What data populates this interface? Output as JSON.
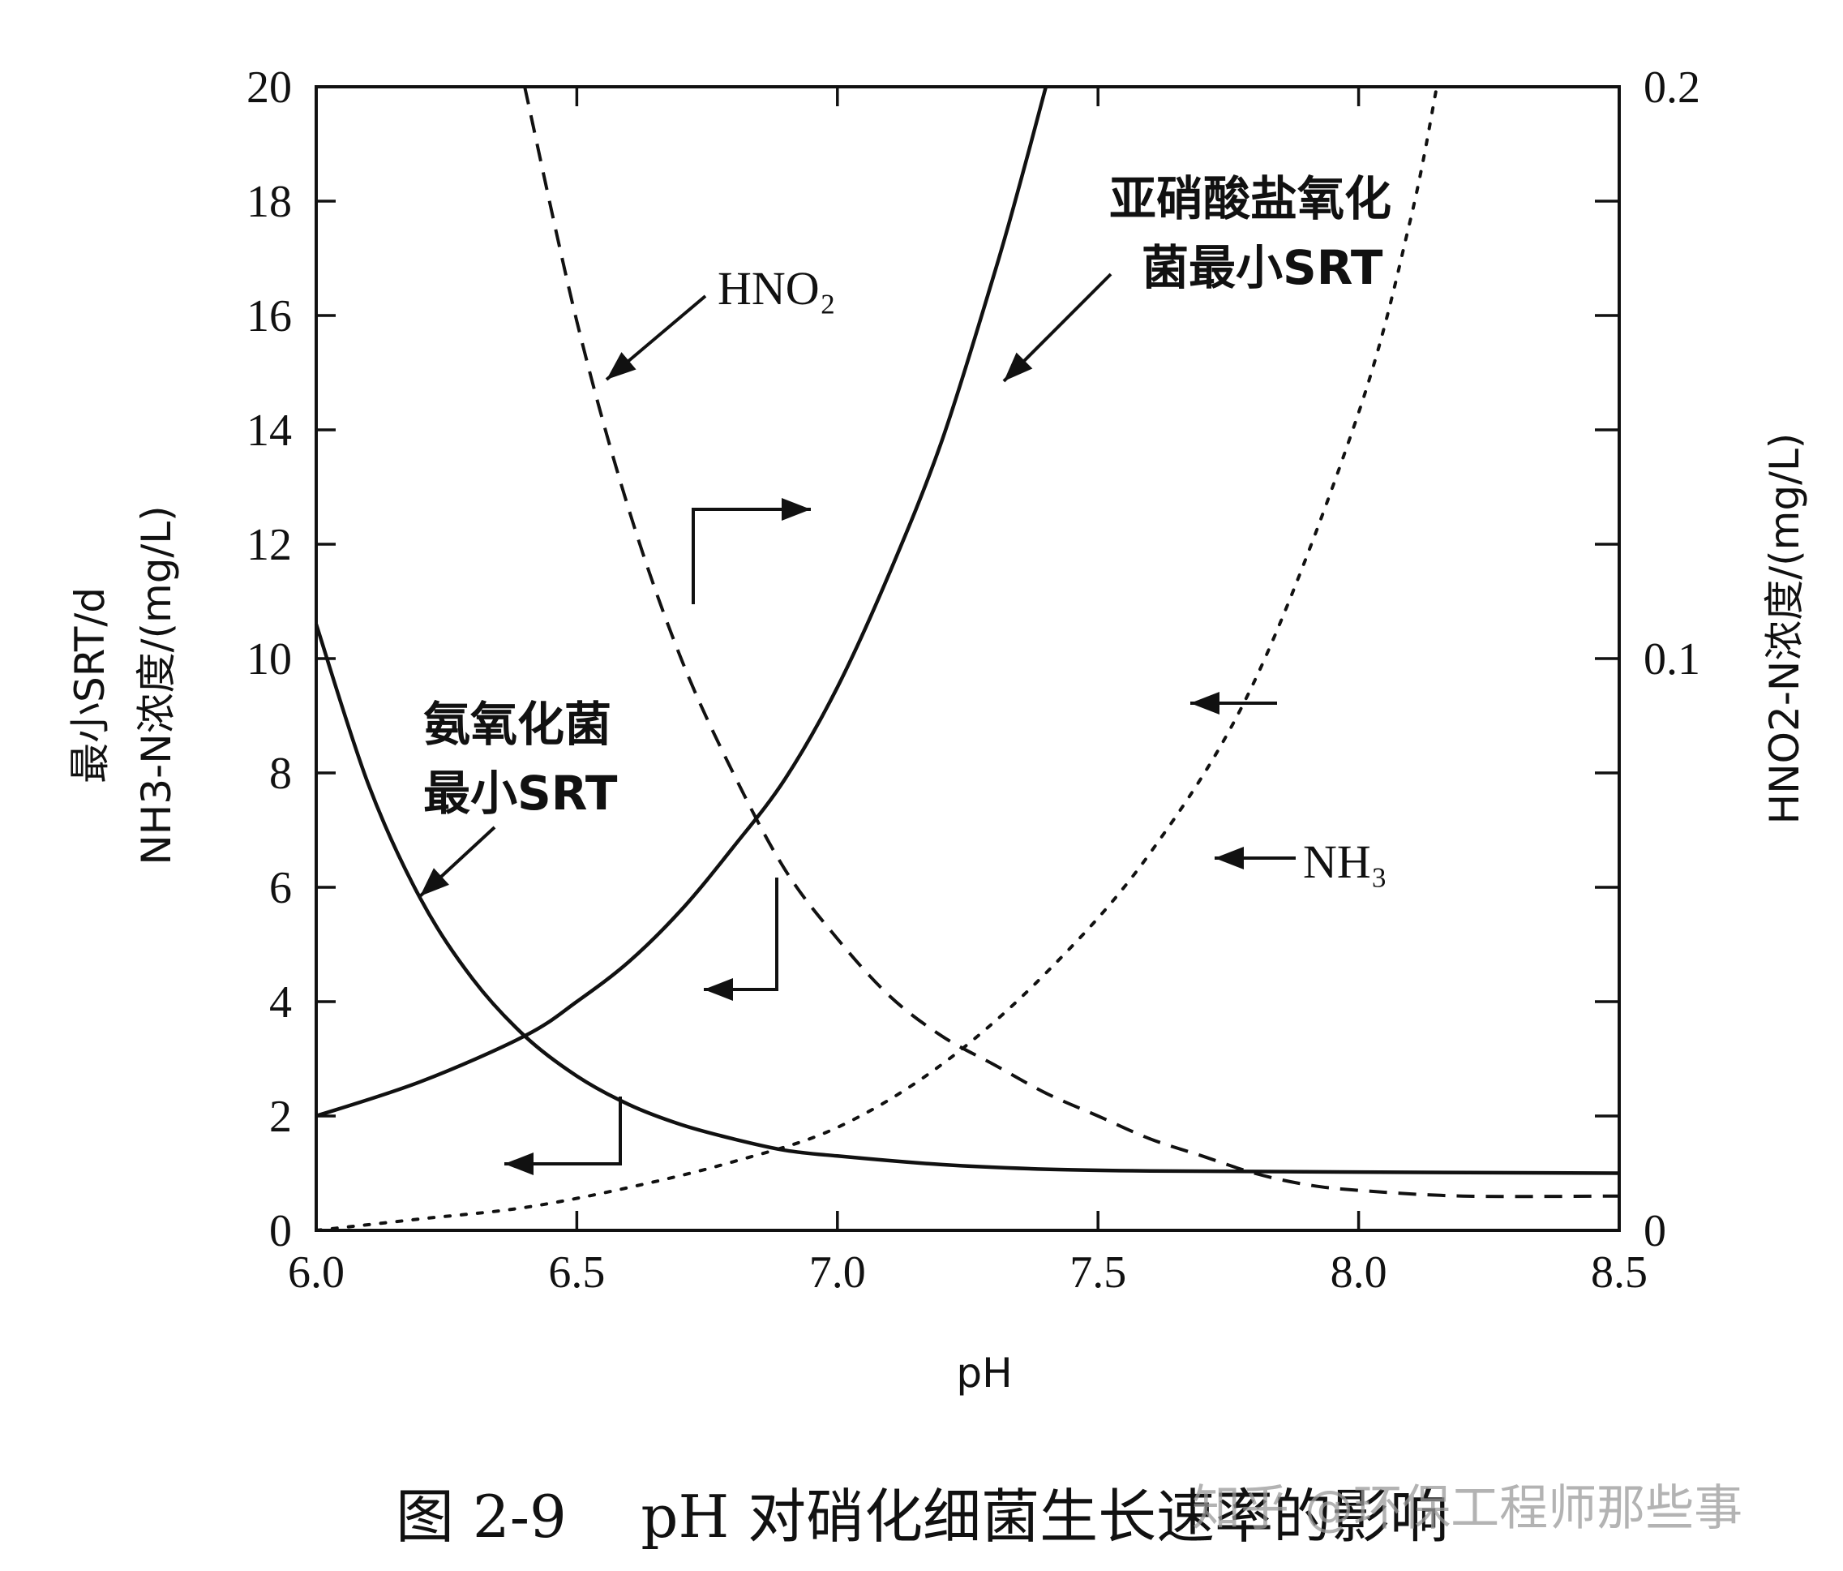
{
  "chart_data": {
    "type": "line",
    "xlabel": "pH",
    "ylabel_left_line1": "最小SRT/d",
    "ylabel_left_line2": "NH3-N浓度/(mg/L)",
    "ylabel_right": "HNO2-N浓度/(mg/L)",
    "xlim": [
      6.0,
      8.5
    ],
    "ylim_left": [
      0,
      20
    ],
    "ylim_right": [
      0,
      0.2
    ],
    "x_ticks": [
      "6.0",
      "6.5",
      "7.0",
      "7.5",
      "8.0",
      "8.5"
    ],
    "y_left_ticks": [
      "0",
      "2",
      "4",
      "6",
      "8",
      "10",
      "12",
      "14",
      "16",
      "18",
      "20"
    ],
    "y_right_ticks": [
      "0",
      "0.1",
      "0.2"
    ],
    "series": [
      {
        "name": "氨氧化菌最小SRT",
        "axis": "left",
        "style": "solid",
        "x": [
          6.0,
          6.1,
          6.2,
          6.3,
          6.4,
          6.5,
          6.6,
          6.7,
          6.8,
          6.9,
          7.0,
          7.2,
          7.4,
          7.6,
          8.0,
          8.5
        ],
        "y": [
          10.6,
          7.8,
          5.8,
          4.4,
          3.4,
          2.7,
          2.2,
          1.85,
          1.6,
          1.4,
          1.3,
          1.15,
          1.07,
          1.04,
          1.02,
          1.0
        ]
      },
      {
        "name": "亚硝酸盐氧化菌最小SRT",
        "axis": "left",
        "style": "solid",
        "x": [
          6.0,
          6.2,
          6.4,
          6.5,
          6.6,
          6.7,
          6.8,
          6.9,
          7.0,
          7.1,
          7.2,
          7.3,
          7.35,
          7.4
        ],
        "y": [
          2.0,
          2.6,
          3.4,
          4.0,
          4.7,
          5.6,
          6.7,
          7.9,
          9.5,
          11.5,
          13.8,
          16.7,
          18.3,
          20.0
        ]
      },
      {
        "name": "HNO₂",
        "axis": "right",
        "style": "dashed",
        "x": [
          6.4,
          6.5,
          6.6,
          6.7,
          6.8,
          6.9,
          7.0,
          7.1,
          7.2,
          7.3,
          7.4,
          7.5,
          7.6,
          7.7,
          7.8,
          7.9,
          8.0,
          8.2,
          8.5
        ],
        "y": [
          0.2,
          0.159,
          0.126,
          0.1,
          0.08,
          0.063,
          0.051,
          0.041,
          0.034,
          0.029,
          0.024,
          0.02,
          0.016,
          0.013,
          0.01,
          0.008,
          0.007,
          0.006,
          0.006
        ]
      },
      {
        "name": "NH₃",
        "axis": "left",
        "style": "dotted",
        "x": [
          6.0,
          6.2,
          6.4,
          6.6,
          6.8,
          7.0,
          7.2,
          7.4,
          7.6,
          7.8,
          8.0,
          8.1,
          8.15
        ],
        "y": [
          0.0,
          0.2,
          0.4,
          0.75,
          1.2,
          1.8,
          2.9,
          4.5,
          6.6,
          9.6,
          14.3,
          17.7,
          20.0
        ]
      }
    ],
    "annotations": {
      "hno2": "HNO₂",
      "nob_line1": "亚硝酸盐氧化",
      "nob_line2": "菌最小SRT",
      "aob_line1": "氨氧化菌",
      "aob_line2": "最小SRT",
      "nh3": "NH₃"
    }
  },
  "caption": "图 2-9    pH 对硝化细菌生长速率的影响",
  "watermark": "知乎 @环保工程师那些事"
}
